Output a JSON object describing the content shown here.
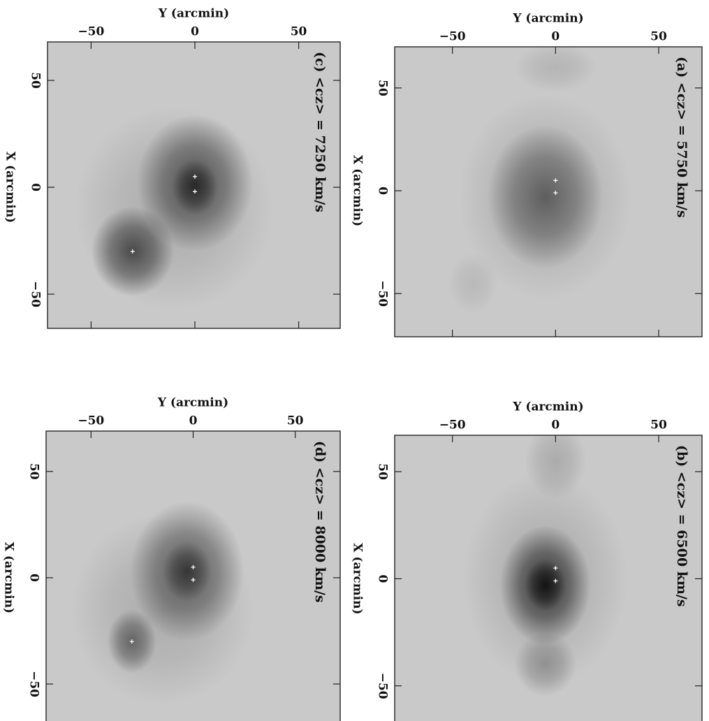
{
  "chart_data": [
    {
      "type": "scatter",
      "title": "(c) <cz> = 7250 km/s",
      "xlabel": "Y (arcmin)",
      "ylabel": "X (arcmin)",
      "xlim": [
        -71,
        70
      ],
      "ylim": [
        -66,
        68
      ],
      "xticks": [
        {
          "value": -50,
          "label": "−50"
        },
        0,
        50
      ],
      "yticks": [
        {
          "value": -50,
          "label": "−50"
        },
        0,
        50
      ],
      "x": [
        0,
        0,
        -30
      ],
      "values": [
        5,
        -2,
        -30
      ],
      "color": "#ffffff"
    },
    {
      "type": "scatter",
      "title": "(a) <cz> = 5750 km/s",
      "xlabel": "Y (arcmin)",
      "ylabel": "X (arcmin)",
      "xlim": [
        -78,
        71
      ],
      "ylim": [
        -71,
        70
      ],
      "xticks": [
        {
          "value": -50,
          "label": "−50"
        },
        0,
        50
      ],
      "yticks": [
        {
          "value": -50,
          "label": "−50"
        },
        0,
        50
      ],
      "x": [
        0,
        0
      ],
      "values": [
        5,
        -1
      ],
      "color": "#ffffff"
    },
    {
      "type": "scatter",
      "title": "(d) <cz> = 8000 km/s",
      "xlabel": "Y (arcmin)",
      "ylabel": "X (arcmin)",
      "xlim": [
        -72,
        72
      ],
      "ylim": [
        -72,
        69
      ],
      "xticks": [
        {
          "value": -50,
          "label": "−50"
        },
        0,
        50
      ],
      "yticks": [
        {
          "value": -50,
          "label": "−50"
        },
        0,
        50
      ],
      "x": [
        0,
        0,
        -30
      ],
      "values": [
        5,
        -1,
        -30
      ],
      "color": "#ffffff"
    },
    {
      "type": "scatter",
      "title": "(b) <cz> = 6500 km/s",
      "xlabel": "Y (arcmin)",
      "ylabel": "X (arcmin)",
      "xlim": [
        -78,
        71
      ],
      "ylim": [
        -70,
        67
      ],
      "xticks": [
        {
          "value": -50,
          "label": "−50"
        },
        0,
        50
      ],
      "yticks": [
        {
          "value": -50,
          "label": "−50"
        },
        0,
        50
      ],
      "x": [
        0,
        0
      ],
      "values": [
        5,
        -1
      ],
      "color": "#ffffff"
    }
  ]
}
